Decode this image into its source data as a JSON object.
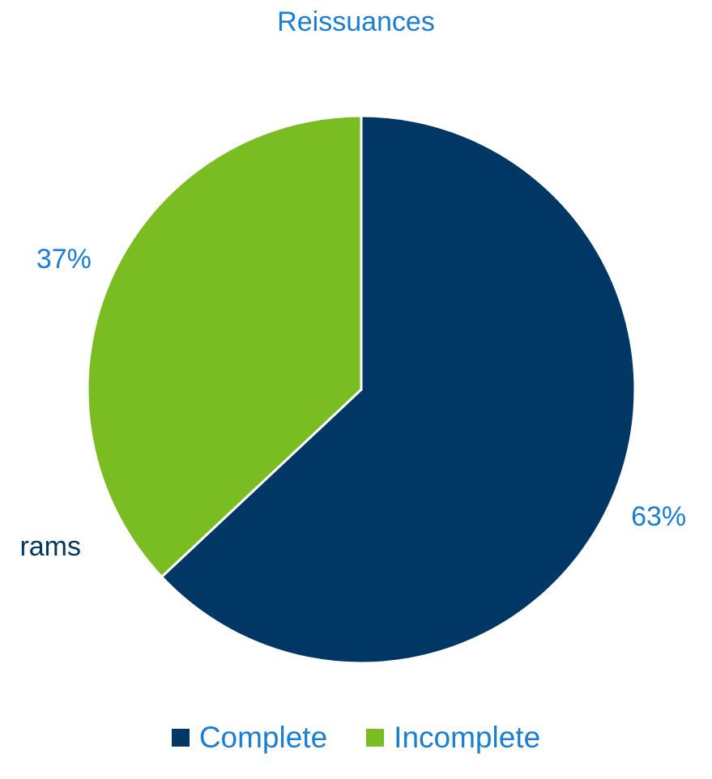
{
  "chart_data": {
    "type": "pie",
    "title": "Reissuances",
    "slices": [
      {
        "name": "Complete",
        "value": 63,
        "label": "63%",
        "color": "#003764"
      },
      {
        "name": "Incomplete",
        "value": 37,
        "label": "37%",
        "color": "#7abd22"
      }
    ],
    "legend_position": "bottom"
  },
  "partial_label": "rams"
}
